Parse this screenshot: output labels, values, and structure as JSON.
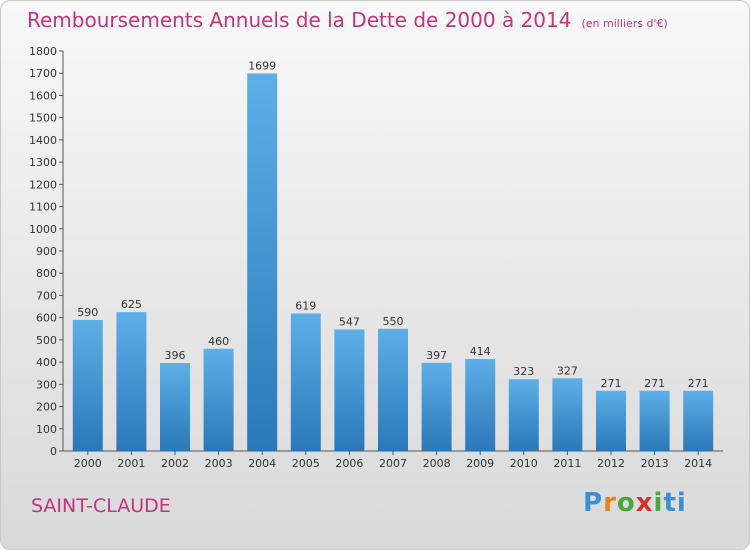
{
  "header": {
    "title": "Remboursements Annuels de la Dette de 2000 à 2014",
    "subtitle": "(en milliers d'€)"
  },
  "footer": {
    "city": "SAINT-CLAUDE",
    "logo_text": "Proxiti"
  },
  "colors": {
    "title": "#c0357c",
    "bar_top": "#5eafe8",
    "bar_bottom": "#2a78b8"
  },
  "chart_data": {
    "type": "bar",
    "title": "Remboursements Annuels de la Dette de 2000 à 2014",
    "subtitle": "(en milliers d'€)",
    "xlabel": "",
    "ylabel": "",
    "categories": [
      "2000",
      "2001",
      "2002",
      "2003",
      "2004",
      "2005",
      "2006",
      "2007",
      "2008",
      "2009",
      "2010",
      "2011",
      "2012",
      "2013",
      "2014"
    ],
    "values": [
      590,
      625,
      396,
      460,
      1699,
      619,
      547,
      550,
      397,
      414,
      323,
      327,
      271,
      271,
      271
    ],
    "ylim": [
      0,
      1800
    ],
    "yticks": [
      0,
      100,
      200,
      300,
      400,
      500,
      600,
      700,
      800,
      900,
      1000,
      1100,
      1200,
      1300,
      1400,
      1500,
      1600,
      1700,
      1800
    ],
    "grid": false,
    "legend": "none"
  }
}
